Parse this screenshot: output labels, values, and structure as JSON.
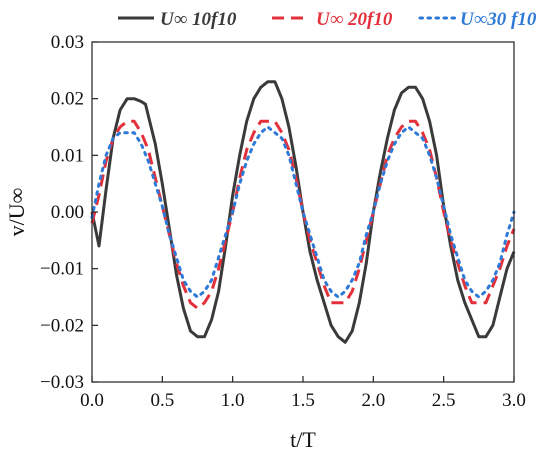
{
  "chart_data": {
    "type": "line",
    "xlabel": "t/T",
    "ylabel": "v/U∞",
    "xlim": [
      0.0,
      3.0
    ],
    "ylim": [
      -0.03,
      0.03
    ],
    "x_ticks": [
      "0.0",
      "0.5",
      "1.0",
      "1.5",
      "2.0",
      "2.5",
      "3.0"
    ],
    "y_ticks": [
      "−0.03",
      "−0.02",
      "−0.01",
      "0.00",
      "0.01",
      "0.02",
      "0.03"
    ],
    "grid": false,
    "legend_position": "top",
    "series": [
      {
        "name": "U∞ 10f10",
        "color": "#3a3a3a",
        "dash": "solid",
        "x": [
          0.0,
          0.05,
          0.1,
          0.15,
          0.2,
          0.25,
          0.3,
          0.35,
          0.38,
          0.45,
          0.5,
          0.55,
          0.6,
          0.65,
          0.7,
          0.75,
          0.8,
          0.85,
          0.9,
          0.95,
          1.0,
          1.05,
          1.1,
          1.15,
          1.2,
          1.25,
          1.3,
          1.35,
          1.4,
          1.45,
          1.5,
          1.55,
          1.6,
          1.65,
          1.7,
          1.75,
          1.8,
          1.85,
          1.9,
          1.95,
          2.0,
          2.05,
          2.1,
          2.15,
          2.2,
          2.25,
          2.3,
          2.35,
          2.4,
          2.45,
          2.5,
          2.55,
          2.6,
          2.65,
          2.7,
          2.75,
          2.8,
          2.85,
          2.9,
          2.95,
          3.0
        ],
        "y": [
          0.0,
          -0.006,
          0.004,
          0.013,
          0.018,
          0.02,
          0.02,
          0.0195,
          0.019,
          0.012,
          0.005,
          -0.003,
          -0.011,
          -0.017,
          -0.021,
          -0.022,
          -0.022,
          -0.019,
          -0.014,
          -0.006,
          0.003,
          0.01,
          0.016,
          0.02,
          0.022,
          0.023,
          0.023,
          0.02,
          0.015,
          0.008,
          0.0,
          -0.007,
          -0.012,
          -0.016,
          -0.02,
          -0.022,
          -0.023,
          -0.021,
          -0.016,
          -0.009,
          0.0,
          0.007,
          0.013,
          0.018,
          0.021,
          0.022,
          0.022,
          0.02,
          0.016,
          0.01,
          0.001,
          -0.006,
          -0.012,
          -0.016,
          -0.019,
          -0.022,
          -0.022,
          -0.02,
          -0.015,
          -0.01,
          -0.007
        ]
      },
      {
        "name": "U∞ 20f10",
        "color": "#e3303a",
        "dash": "dashed",
        "x": [
          0.0,
          0.05,
          0.1,
          0.15,
          0.2,
          0.25,
          0.3,
          0.35,
          0.4,
          0.45,
          0.5,
          0.55,
          0.6,
          0.65,
          0.7,
          0.75,
          0.8,
          0.85,
          0.9,
          0.95,
          1.0,
          1.05,
          1.1,
          1.15,
          1.2,
          1.25,
          1.3,
          1.35,
          1.4,
          1.45,
          1.5,
          1.55,
          1.6,
          1.65,
          1.7,
          1.75,
          1.8,
          1.85,
          1.9,
          1.95,
          2.0,
          2.05,
          2.1,
          2.15,
          2.2,
          2.25,
          2.3,
          2.35,
          2.4,
          2.45,
          2.5,
          2.55,
          2.6,
          2.65,
          2.7,
          2.75,
          2.8,
          2.85,
          2.9,
          2.95,
          3.0
        ],
        "y": [
          -0.002,
          0.003,
          0.009,
          0.013,
          0.015,
          0.016,
          0.016,
          0.014,
          0.011,
          0.006,
          0.001,
          -0.004,
          -0.009,
          -0.013,
          -0.016,
          -0.017,
          -0.016,
          -0.014,
          -0.01,
          -0.005,
          0.0,
          0.006,
          0.011,
          0.014,
          0.016,
          0.016,
          0.016,
          0.014,
          0.011,
          0.006,
          0.0,
          -0.005,
          -0.009,
          -0.013,
          -0.016,
          -0.016,
          -0.016,
          -0.014,
          -0.01,
          -0.005,
          0.0,
          0.005,
          0.01,
          0.013,
          0.015,
          0.016,
          0.016,
          0.014,
          0.011,
          0.006,
          0.0,
          -0.005,
          -0.009,
          -0.013,
          -0.016,
          -0.016,
          -0.016,
          -0.013,
          -0.01,
          -0.006,
          -0.003
        ]
      },
      {
        "name": "U∞30 f10",
        "color": "#2f7ad6",
        "dash": "dotted",
        "x": [
          0.0,
          0.05,
          0.1,
          0.15,
          0.2,
          0.25,
          0.3,
          0.35,
          0.4,
          0.45,
          0.5,
          0.55,
          0.6,
          0.65,
          0.7,
          0.75,
          0.8,
          0.85,
          0.9,
          0.95,
          1.0,
          1.05,
          1.1,
          1.15,
          1.2,
          1.25,
          1.3,
          1.35,
          1.4,
          1.45,
          1.5,
          1.55,
          1.6,
          1.65,
          1.7,
          1.75,
          1.8,
          1.85,
          1.9,
          1.95,
          2.0,
          2.05,
          2.1,
          2.15,
          2.2,
          2.25,
          2.3,
          2.35,
          2.4,
          2.45,
          2.5,
          2.55,
          2.6,
          2.65,
          2.7,
          2.75,
          2.8,
          2.85,
          2.9,
          2.95,
          3.0
        ],
        "y": [
          -0.001,
          0.005,
          0.01,
          0.013,
          0.014,
          0.014,
          0.014,
          0.012,
          0.009,
          0.005,
          0.001,
          -0.004,
          -0.008,
          -0.012,
          -0.014,
          -0.015,
          -0.014,
          -0.012,
          -0.008,
          -0.004,
          0.0,
          0.005,
          0.009,
          0.012,
          0.014,
          0.015,
          0.014,
          0.013,
          0.01,
          0.005,
          0.0,
          -0.004,
          -0.008,
          -0.012,
          -0.014,
          -0.015,
          -0.014,
          -0.012,
          -0.009,
          -0.004,
          0.0,
          0.005,
          0.009,
          0.012,
          0.014,
          0.015,
          0.014,
          0.013,
          0.01,
          0.006,
          0.001,
          -0.004,
          -0.008,
          -0.012,
          -0.014,
          -0.015,
          -0.014,
          -0.012,
          -0.009,
          -0.004,
          0.0
        ]
      }
    ]
  }
}
